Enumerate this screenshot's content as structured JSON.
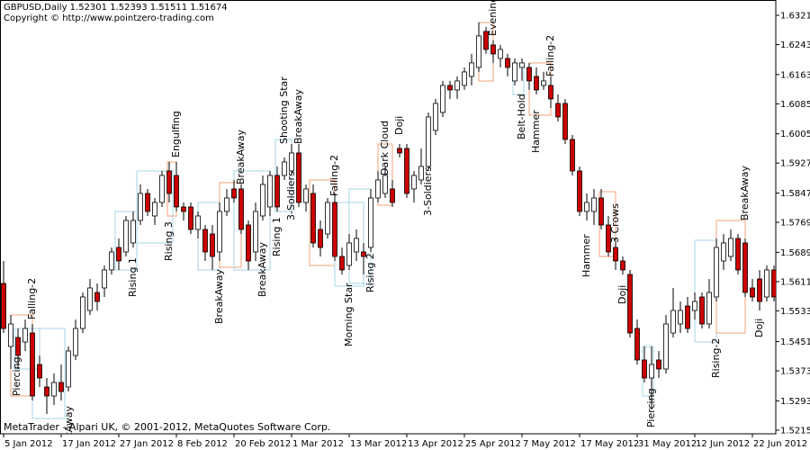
{
  "chart_data": {
    "type": "candlestick",
    "title": "GBPUSD,Daily  1.52301 1.52393 1.51511 1.51674",
    "subtitle": "Copyright © http://www.pointzero-trading.com",
    "footer": "MetaTrader - Alpari UK, © 2001-2012, MetaQuotes Software Corp.",
    "categories": [
      "5 Jan 2012",
      null,
      null,
      null,
      null,
      null,
      null,
      null,
      "17 Jan 2012",
      null,
      null,
      null,
      null,
      null,
      null,
      null,
      "27 Jan 2012",
      null,
      null,
      null,
      null,
      null,
      null,
      null,
      "8 Feb 2012",
      null,
      null,
      null,
      null,
      null,
      null,
      null,
      "20 Feb 2012",
      null,
      null,
      null,
      null,
      null,
      null,
      null,
      "1 Mar 2012",
      null,
      null,
      null,
      null,
      null,
      null,
      null,
      "13 Mar 2012",
      null,
      null,
      null,
      null,
      null,
      null,
      null,
      "13 Apr 2012",
      null,
      null,
      null,
      null,
      null,
      null,
      null,
      "25 Apr 2012",
      null,
      null,
      null,
      null,
      null,
      null,
      null,
      "7 May 2012",
      null,
      null,
      null,
      null,
      null,
      null,
      null,
      "17 May 2012",
      null,
      null,
      null,
      null,
      null,
      null,
      null,
      "31 May 2012",
      null,
      null,
      null,
      null,
      null,
      null,
      null,
      "12 Jun 2012",
      null,
      null,
      null,
      null,
      null,
      null,
      null,
      "22 Jun 2012",
      null,
      null,
      null
    ],
    "open": [
      1.5606,
      1.5438,
      1.5462,
      1.545,
      1.5474,
      1.539,
      1.533,
      1.5306,
      1.5342,
      1.533,
      1.5414,
      1.5486,
      1.5534,
      1.5582,
      1.5594,
      1.5642,
      1.5702,
      1.569,
      1.5714,
      1.5774,
      1.5846,
      1.5786,
      1.5822,
      1.5906,
      1.5894,
      1.581,
      1.581,
      1.575,
      1.575,
      1.5738,
      1.569,
      1.5798,
      1.5858,
      1.5858,
      1.5762,
      1.569,
      1.5786,
      1.581,
      1.5894,
      1.5894,
      1.5906,
      1.5954,
      1.5822,
      1.5846,
      1.575,
      1.5738,
      1.5822,
      1.5678,
      1.5654,
      1.569,
      1.569,
      1.5702,
      1.5834,
      1.5846,
      1.5858,
      1.5966,
      1.5966,
      1.5858,
      1.5882,
      1.5918,
      1.6014,
      1.6062,
      1.6134,
      1.6122,
      1.6134,
      1.6158,
      1.6182,
      1.6278,
      1.6242,
      1.6206,
      1.6206,
      1.6146,
      1.6182,
      1.6182,
      1.6158,
      1.6134,
      1.6134,
      1.6086,
      1.6086,
      1.599,
      1.5906,
      1.5798,
      1.5798,
      1.5834,
      1.5762,
      1.5702,
      1.5666,
      1.563,
      1.5486,
      1.5402,
      1.5354,
      1.5402,
      1.5378,
      1.5474,
      1.5498,
      1.5546,
      1.5534,
      1.557,
      1.5498,
      1.557,
      1.5666,
      1.5678,
      1.5726,
      1.5714,
      1.5594,
      1.5618,
      1.557,
      1.5642
    ],
    "high": [
      1.5666,
      1.5522,
      1.5486,
      1.551,
      1.5498,
      1.5414,
      1.5354,
      1.5366,
      1.539,
      1.5438,
      1.551,
      1.5582,
      1.5618,
      1.5606,
      1.5654,
      1.5702,
      1.5726,
      1.5786,
      1.5798,
      1.587,
      1.5858,
      1.5834,
      1.5906,
      1.593,
      1.593,
      1.5822,
      1.5822,
      1.5798,
      1.5762,
      1.5762,
      1.5822,
      1.5858,
      1.5882,
      1.587,
      1.5774,
      1.5822,
      1.5894,
      1.5906,
      1.5918,
      1.5942,
      1.5978,
      1.5978,
      1.587,
      1.587,
      1.5774,
      1.5834,
      1.5846,
      1.5702,
      1.5738,
      1.575,
      1.5714,
      1.5858,
      1.5906,
      1.5918,
      1.5882,
      1.5978,
      1.5978,
      1.5906,
      1.5966,
      1.6062,
      1.6098,
      1.6146,
      1.6146,
      1.6158,
      1.6182,
      1.6218,
      1.6302,
      1.629,
      1.6254,
      1.6242,
      1.6218,
      1.6206,
      1.6206,
      1.6194,
      1.6182,
      1.617,
      1.6158,
      1.611,
      1.6098,
      1.6002,
      1.5918,
      1.5846,
      1.5858,
      1.5858,
      1.5786,
      1.5726,
      1.5678,
      1.5642,
      1.551,
      1.5438,
      1.5438,
      1.5426,
      1.5522,
      1.5594,
      1.5558,
      1.557,
      1.5582,
      1.5582,
      1.5618,
      1.5726,
      1.5738,
      1.575,
      1.5738,
      1.5726,
      1.5618,
      1.5642,
      1.5654,
      1.5654
    ],
    "low": [
      1.5474,
      1.5378,
      1.5378,
      1.5426,
      1.5294,
      1.533,
      1.5258,
      1.5282,
      1.5294,
      1.5318,
      1.5402,
      1.5474,
      1.5522,
      1.5534,
      1.557,
      1.563,
      1.5642,
      1.5678,
      1.5702,
      1.5762,
      1.5786,
      1.5762,
      1.581,
      1.5822,
      1.5798,
      1.5774,
      1.5738,
      1.5726,
      1.5666,
      1.5642,
      1.5666,
      1.5786,
      1.5822,
      1.5738,
      1.5642,
      1.5666,
      1.5774,
      1.5786,
      1.5798,
      1.5882,
      1.5894,
      1.581,
      1.5798,
      1.5702,
      1.5678,
      1.5726,
      1.5666,
      1.563,
      1.5642,
      1.5666,
      1.563,
      1.569,
      1.5822,
      1.5834,
      1.581,
      1.5942,
      1.5834,
      1.5822,
      1.587,
      1.5906,
      1.6002,
      1.605,
      1.6098,
      1.6098,
      1.6122,
      1.6134,
      1.617,
      1.6218,
      1.6194,
      1.6182,
      1.6158,
      1.6134,
      1.6146,
      1.6122,
      1.611,
      1.6122,
      1.6074,
      1.6038,
      1.5978,
      1.5894,
      1.5786,
      1.5774,
      1.5762,
      1.575,
      1.5678,
      1.5642,
      1.563,
      1.5462,
      1.539,
      1.5342,
      1.527,
      1.5354,
      1.5366,
      1.5462,
      1.5474,
      1.5474,
      1.551,
      1.5486,
      1.5486,
      1.5558,
      1.5642,
      1.5666,
      1.563,
      1.557,
      1.5558,
      1.5534,
      1.5558,
      1.5558
    ],
    "close": [
      1.5486,
      1.5498,
      1.5414,
      1.5486,
      1.5306,
      1.5354,
      1.5306,
      1.5342,
      1.5318,
      1.5426,
      1.5486,
      1.557,
      1.5594,
      1.5558,
      1.5642,
      1.569,
      1.5666,
      1.5774,
      1.5774,
      1.5846,
      1.5798,
      1.5822,
      1.5894,
      1.5846,
      1.581,
      1.5798,
      1.575,
      1.5786,
      1.569,
      1.5678,
      1.5798,
      1.5834,
      1.5834,
      1.575,
      1.5666,
      1.5798,
      1.587,
      1.5894,
      1.581,
      1.593,
      1.5954,
      1.5822,
      1.5858,
      1.5714,
      1.5702,
      1.5822,
      1.5678,
      1.5642,
      1.5714,
      1.5726,
      1.5678,
      1.5834,
      1.5882,
      1.5894,
      1.5822,
      1.5954,
      1.5846,
      1.5894,
      1.5918,
      1.605,
      1.6086,
      1.6134,
      1.6122,
      1.6146,
      1.617,
      1.6194,
      1.6266,
      1.623,
      1.6218,
      1.623,
      1.6182,
      1.6194,
      1.6194,
      1.6146,
      1.6122,
      1.6146,
      1.6098,
      1.605,
      1.599,
      1.5906,
      1.5798,
      1.5822,
      1.5834,
      1.5762,
      1.569,
      1.5666,
      1.5642,
      1.5474,
      1.5402,
      1.5354,
      1.539,
      1.5378,
      1.5498,
      1.5534,
      1.5534,
      1.5486,
      1.5558,
      1.5498,
      1.5582,
      1.5702,
      1.5714,
      1.5726,
      1.5642,
      1.5582,
      1.557,
      1.5558,
      1.5642,
      1.557
    ],
    "up_color": "#ffffff",
    "down_color": "#cc0000",
    "ylim": [
      1.521,
      1.6357
    ],
    "yticks": [
      {
        "value": 1.6321,
        "label": "1.63210"
      },
      {
        "value": 1.6243,
        "label": "1.62430"
      },
      {
        "value": 1.6163,
        "label": "1.61630"
      },
      {
        "value": 1.6085,
        "label": "1.60850"
      },
      {
        "value": 1.6005,
        "label": "1.60050"
      },
      {
        "value": 1.5927,
        "label": "1.59270"
      },
      {
        "value": 1.5847,
        "label": "1.58470"
      },
      {
        "value": 1.5769,
        "label": "1.57690"
      },
      {
        "value": 1.5689,
        "label": "1.56890"
      },
      {
        "value": 1.5611,
        "label": "1.56110"
      },
      {
        "value": 1.5533,
        "label": "1.55330"
      },
      {
        "value": 1.5451,
        "label": "1.54510"
      },
      {
        "value": 1.5373,
        "label": "1.53730"
      },
      {
        "value": 1.5293,
        "label": "1.52930"
      },
      {
        "value": 1.5215,
        "label": "1.52150"
      }
    ],
    "grid": false,
    "annotations": [
      {
        "text": "Piercing",
        "color": "#1a1aa6"
      },
      {
        "text": "Falling-2",
        "color": "#d42020"
      },
      {
        "text": "BreakAway",
        "color": "#1a1aa6"
      },
      {
        "text": "Rising 1",
        "color": "#1a1aa6"
      },
      {
        "text": "Rising 3",
        "color": "#1a1aa6"
      },
      {
        "text": "Engulfing",
        "color": "#d42020"
      },
      {
        "text": "BreakAway",
        "color": "#1a1aa6"
      },
      {
        "text": "BreakAway",
        "color": "#d42020"
      },
      {
        "text": "BreakAway",
        "color": "#1a1aa6"
      },
      {
        "text": "Rising 1",
        "color": "#1a1aa6"
      },
      {
        "text": "Shooting Star",
        "color": "#d42020"
      },
      {
        "text": "BreakAway",
        "color": "#d42020"
      },
      {
        "text": "3-Soldiers",
        "color": "#1a1aa6"
      },
      {
        "text": "Falling-2",
        "color": "#d42020"
      },
      {
        "text": "Morning Star",
        "color": "#1a1aa6"
      },
      {
        "text": "Rising 2",
        "color": "#1a1aa6"
      },
      {
        "text": "Dark Cloud",
        "color": "#d42020"
      },
      {
        "text": "Doji",
        "color": "#008080"
      },
      {
        "text": "3-Soldiers",
        "color": "#1a1aa6"
      },
      {
        "text": "Evening",
        "color": "#d42020"
      },
      {
        "text": "Belt-Hold",
        "color": "#1a1aa6"
      },
      {
        "text": "Hammer",
        "color": "#1a1aa6"
      },
      {
        "text": "Falling-2",
        "color": "#d42020"
      },
      {
        "text": "3 Crows",
        "color": "#d42020"
      },
      {
        "text": "Hammer",
        "color": "#1a1aa6"
      },
      {
        "text": "Doji",
        "color": "#008080"
      },
      {
        "text": "Piercing",
        "color": "#1a1aa6"
      },
      {
        "text": "Rising-2",
        "color": "#1a1aa6"
      },
      {
        "text": "BreakAway",
        "color": "#d42020"
      },
      {
        "text": "Doji",
        "color": "#008080"
      }
    ]
  }
}
